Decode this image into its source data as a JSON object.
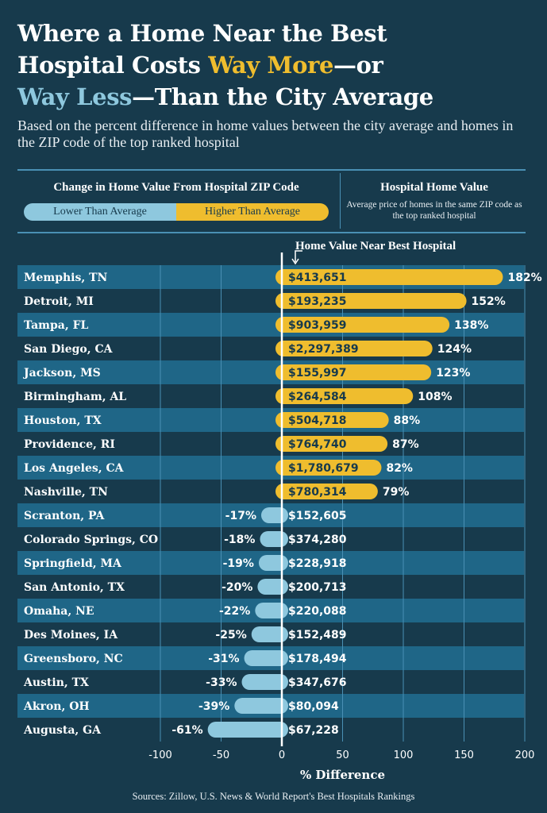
{
  "header": {
    "title_line1": "Where a Home Near the Best",
    "title_line2_pre": "Hospital Costs ",
    "title_line2_hi": "Way More",
    "title_line2_post": "—or",
    "title_line3_hi": "Way Less",
    "title_line3_post": "—Than the City Average",
    "subtitle": "Based on the percent difference in home values between the city average and homes in the ZIP code of the top ranked hospital"
  },
  "legend": {
    "title": "Change in Home Value From Hospital ZIP Code",
    "lower_label": "Lower Than Average",
    "higher_label": "Higher Than Average",
    "home_value_title": "Hospital Home Value",
    "home_value_desc": "Average price of homes in the same ZIP code as the top ranked hospital"
  },
  "colors": {
    "background": "#173a4c",
    "row_band": "#1f6687",
    "higher": "#efbd2e",
    "lower": "#8ec8de",
    "grid": "#4a90b4"
  },
  "marker_label": "Home Value Near Best Hospital",
  "sources": "Sources: Zillow, U.S. News & World Report's Best Hospitals Rankings",
  "chart_data": {
    "type": "bar",
    "orientation": "horizontal",
    "xlabel": "% Difference",
    "xlim": [
      -100,
      200
    ],
    "xticks": [
      -100,
      -50,
      0,
      50,
      100,
      150,
      200
    ],
    "grid": true,
    "categories": [
      "Memphis, TN",
      "Detroit, MI",
      "Tampa, FL",
      "San Diego, CA",
      "Jackson, MS",
      "Birmingham, AL",
      "Houston, TX",
      "Providence, RI",
      "Los Angeles, CA",
      "Nashville, TN",
      "Scranton, PA",
      "Colorado Springs, CO",
      "Springfield, MA",
      "San Antonio, TX",
      "Omaha, NE",
      "Des Moines, IA",
      "Greensboro, NC",
      "Austin, TX",
      "Akron, OH",
      "Augusta, GA"
    ],
    "values": [
      182,
      152,
      138,
      124,
      123,
      108,
      88,
      87,
      82,
      79,
      -17,
      -18,
      -19,
      -20,
      -22,
      -25,
      -31,
      -33,
      -39,
      -61
    ],
    "value_labels": [
      "182%",
      "152%",
      "138%",
      "124%",
      "123%",
      "108%",
      "88%",
      "87%",
      "82%",
      "79%",
      "-17%",
      "-18%",
      "-19%",
      "-20%",
      "-22%",
      "-25%",
      "-31%",
      "-33%",
      "-39%",
      "-61%"
    ],
    "home_values": [
      "$413,651",
      "$193,235",
      "$903,959",
      "$2,297,389",
      "$155,997",
      "$264,584",
      "$504,718",
      "$764,740",
      "$1,780,679",
      "$780,314",
      "$152,605",
      "$374,280",
      "$228,918",
      "$200,713",
      "$220,088",
      "$152,489",
      "$178,494",
      "$347,676",
      "$80,094",
      "$67,228"
    ]
  }
}
